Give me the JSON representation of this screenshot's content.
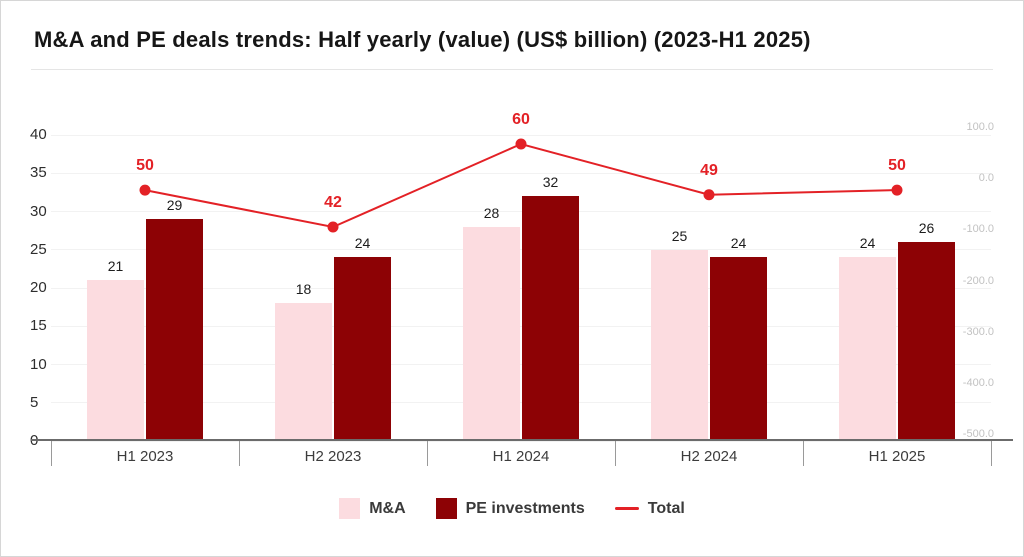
{
  "chart_data": {
    "type": "bar",
    "title": "M&A and PE deals trends: Half yearly (value) (US$ billion) (2023-H1 2025)",
    "categories": [
      "H1 2023",
      "H2 2023",
      "H1 2024",
      "H2 2024",
      "H1 2025"
    ],
    "series": [
      {
        "name": "M&A",
        "type": "bar",
        "color": "#FCDCE0",
        "values": [
          21,
          18,
          28,
          25,
          24
        ]
      },
      {
        "name": "PE investments",
        "type": "bar",
        "color": "#8D0205",
        "values": [
          29,
          24,
          32,
          24,
          26
        ]
      },
      {
        "name": "Total",
        "type": "line",
        "color": "#E32126",
        "values": [
          50,
          42,
          60,
          49,
          50
        ]
      }
    ],
    "left_axis": {
      "ticks": [
        40,
        35,
        30,
        25,
        20,
        15,
        10,
        5,
        0
      ],
      "min": 0,
      "max": 40
    },
    "right_axis": {
      "ticks": [
        "100.0",
        "0.0",
        "-100.0",
        "-200.0",
        "-300.0",
        "-400.0",
        "-500.0"
      ]
    },
    "grid": true,
    "legend_position": "bottom"
  }
}
